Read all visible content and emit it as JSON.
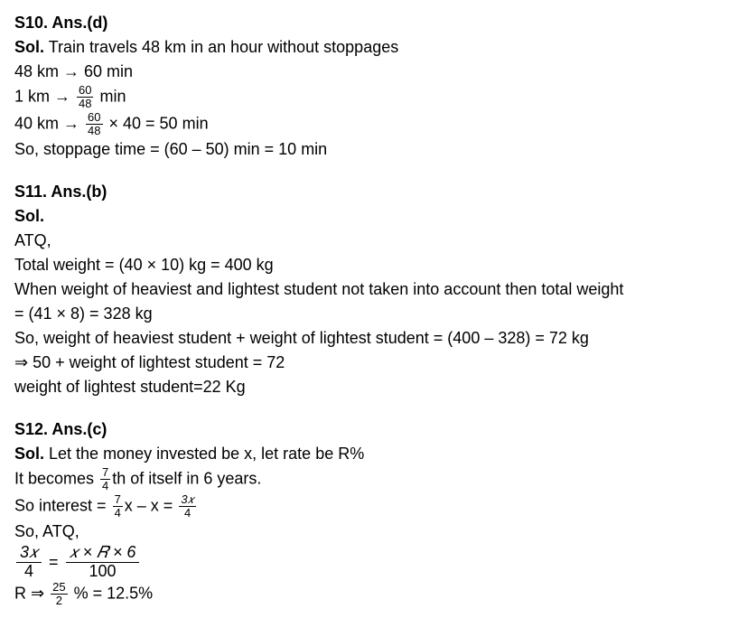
{
  "s10": {
    "header": "S10. Ans.(d)",
    "sol_label": "Sol.",
    "l1_rest": " Train travels 48 km in an hour without stoppages",
    "l2": "48 km → 60 min",
    "l3_pre": "1 km → ",
    "l3_num": "60",
    "l3_den": "48",
    "l3_post": " min",
    "l4_pre": "40 km → ",
    "l4_num": "60",
    "l4_den": "48",
    "l4_post": " × 40 = 50 min",
    "l5": "So, stoppage time = (60 – 50) min = 10 min"
  },
  "s11": {
    "header": "S11. Ans.(b)",
    "sol_label": "Sol.",
    "l1": "ATQ,",
    "l2": "Total weight = (40 × 10) kg = 400 kg",
    "l3": "When weight of heaviest and lightest student not taken into account then total weight",
    "l4": "= (41 × 8) = 328 kg",
    "l5": "So, weight of heaviest student + weight of lightest student = (400 – 328) = 72 kg",
    "l6": "⇒ 50 + weight of lightest student = 72",
    "l7": " weight of lightest student=22 Kg"
  },
  "s12": {
    "header": "S12. Ans.(c)",
    "sol_label": "Sol.",
    "l1_rest": " Let the money invested be x, let rate be R%",
    "l2_pre": "It becomes ",
    "l2_num": "7",
    "l2_den": "4",
    "l2_post": "th of itself in 6 years.",
    "l3_pre": "So interest = ",
    "l3a_num": "7",
    "l3a_den": "4",
    "l3_mid1": "x – x = ",
    "l3b_num": "3𝑥",
    "l3b_den": "4",
    "l4": "So, ATQ,",
    "l5a_num": "3𝑥",
    "l5a_den": "4",
    "l5_eq": "=",
    "l5b_num": "𝑥 × 𝑅 × 6",
    "l5b_den": "100",
    "l6_pre": "R ⇒ ",
    "l6_num": "25",
    "l6_den": "2",
    "l6_post": " % = 12.5%"
  }
}
